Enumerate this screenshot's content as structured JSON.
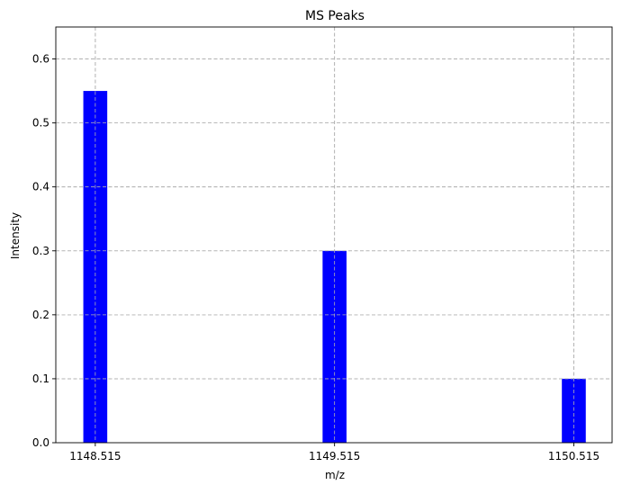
{
  "chart_data": {
    "type": "bar",
    "title": "MS Peaks",
    "xlabel": "m/z",
    "ylabel": "Intensity",
    "x": [
      1148.515,
      1149.515,
      1150.515
    ],
    "x_tick_labels": [
      "1148.515",
      "1149.515",
      "1150.515"
    ],
    "values": [
      0.55,
      0.3,
      0.1
    ],
    "bar_width": 0.1,
    "xlim": [
      1148.35,
      1150.675
    ],
    "ylim": [
      0,
      0.65
    ],
    "y_ticks": [
      0.0,
      0.1,
      0.2,
      0.3,
      0.4,
      0.5,
      0.6
    ],
    "y_tick_labels": [
      "0.0",
      "0.1",
      "0.2",
      "0.3",
      "0.4",
      "0.5",
      "0.6"
    ],
    "grid": true,
    "grid_style": "dashed",
    "bar_color": "#0000ff",
    "grid_color": "#b0b0b0",
    "axis_color": "#000000"
  }
}
